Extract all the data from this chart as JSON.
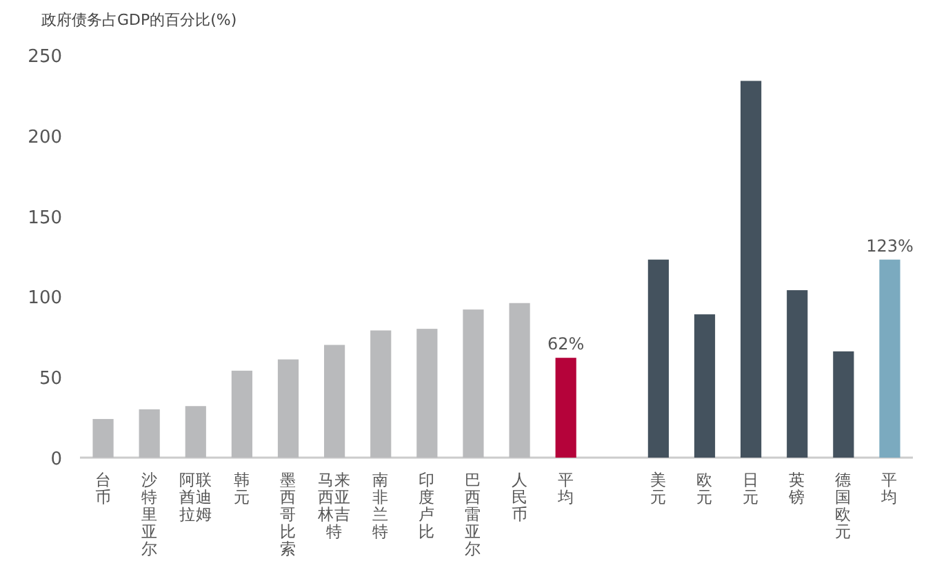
{
  "chart_data": {
    "type": "bar",
    "ylabel": "政府债务占GDP的百分比(%)",
    "categories": [
      "台币",
      "沙特里亚尔",
      "阿联酋迪拉姆",
      "韩元",
      "墨西哥比索",
      "马来西亚林吉特",
      "南非兰特",
      "印度卢比",
      "巴西雷亚尔",
      "人民币",
      "平均",
      null,
      "美元",
      "欧元",
      "日元",
      "英镑",
      "德国欧元",
      "平均"
    ],
    "values": [
      24,
      30,
      32,
      54,
      61,
      70,
      79,
      80,
      92,
      96,
      62,
      null,
      123,
      89,
      234,
      104,
      66,
      123
    ],
    "colors": [
      "#b9babc",
      "#b9babc",
      "#b9babc",
      "#b9babc",
      "#b9babc",
      "#b9babc",
      "#b9babc",
      "#b9babc",
      "#b9babc",
      "#b9babc",
      "#b5033a",
      null,
      "#44525e",
      "#44525e",
      "#44525e",
      "#44525e",
      "#44525e",
      "#7baabf"
    ],
    "value_labels": [
      null,
      null,
      null,
      null,
      null,
      null,
      null,
      null,
      null,
      null,
      "62%",
      null,
      null,
      null,
      null,
      null,
      null,
      "123%"
    ],
    "ylim": [
      0,
      250
    ],
    "yticks": [
      0,
      50,
      100,
      150,
      200,
      250
    ],
    "grid": false
  }
}
